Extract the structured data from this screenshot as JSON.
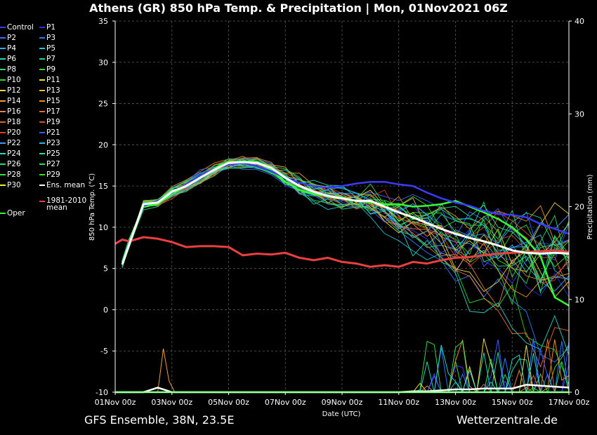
{
  "header": {
    "title": "Athens  (GR)  850 hPa Temp. & Precipitation | Mon, 01Nov2021 06Z"
  },
  "footer": {
    "left": "GFS Ensemble, 38N, 23.5E",
    "right": "Wetterzentrale.de"
  },
  "legend": {
    "members": [
      {
        "label": "Control",
        "color": "#3b3bff"
      },
      {
        "label": "P1",
        "color": "#2f2fe0"
      },
      {
        "label": "P2",
        "color": "#3a6cff"
      },
      {
        "label": "P3",
        "color": "#2a7bff"
      },
      {
        "label": "P4",
        "color": "#3aa6ff"
      },
      {
        "label": "P5",
        "color": "#27c6d8"
      },
      {
        "label": "P6",
        "color": "#22d8b0"
      },
      {
        "label": "P7",
        "color": "#22d890"
      },
      {
        "label": "P8",
        "color": "#2ad66e"
      },
      {
        "label": "P9",
        "color": "#33d84a"
      },
      {
        "label": "P10",
        "color": "#2ad82a"
      },
      {
        "label": "P11",
        "color": "#e6e62a"
      },
      {
        "label": "P12",
        "color": "#f0d84a"
      },
      {
        "label": "P13",
        "color": "#f0b840"
      },
      {
        "label": "P14",
        "color": "#f0a030"
      },
      {
        "label": "P15",
        "color": "#f09020"
      },
      {
        "label": "P16",
        "color": "#e88050"
      },
      {
        "label": "P17",
        "color": "#e86a3a"
      },
      {
        "label": "P18",
        "color": "#e0602a"
      },
      {
        "label": "P19",
        "color": "#e04a2a"
      },
      {
        "label": "P20",
        "color": "#e03a2a"
      },
      {
        "label": "P21",
        "color": "#3a5aff"
      },
      {
        "label": "P22",
        "color": "#3a9aff"
      },
      {
        "label": "P23",
        "color": "#2ab8f0"
      },
      {
        "label": "P24",
        "color": "#2ad8c8"
      },
      {
        "label": "P25",
        "color": "#2ae0a0"
      },
      {
        "label": "P26",
        "color": "#2ad880"
      },
      {
        "label": "P27",
        "color": "#2ae060"
      },
      {
        "label": "P28",
        "color": "#3ae03a"
      },
      {
        "label": "P29",
        "color": "#3ae02a"
      },
      {
        "label": "P30",
        "color": "#f0f02a"
      },
      {
        "label": "Ens. mean",
        "color": "#ffffff"
      }
    ],
    "oper": {
      "label": "Oper",
      "color": "#33ff33"
    },
    "clim": {
      "label_line1": "1981-2010",
      "label_line2": "mean",
      "color": "#e84040"
    }
  },
  "chart_data": {
    "type": "line",
    "title": "Athens  (GR)  850 hPa Temp. & Precipitation | Mon, 01Nov2021 06Z",
    "ylabel": "850 hPa Temp. (°C)",
    "ylabel_right": "Precipitation (mm)",
    "xlabel": "Date (UTC)",
    "xlim": [
      0,
      16
    ],
    "ylim": [
      -10,
      35
    ],
    "ylim_right": [
      0,
      40
    ],
    "x_ticks": [
      {
        "x": 0,
        "label": "01Nov 00z"
      },
      {
        "x": 2,
        "label": "03Nov 00z"
      },
      {
        "x": 4,
        "label": "05Nov 00z"
      },
      {
        "x": 6,
        "label": "07Nov 00z"
      },
      {
        "x": 8,
        "label": "09Nov 00z"
      },
      {
        "x": 10,
        "label": "11Nov 00z"
      },
      {
        "x": 12,
        "label": "13Nov 00z"
      },
      {
        "x": 14,
        "label": "15Nov 00z"
      },
      {
        "x": 16,
        "label": "17Nov 00z"
      }
    ],
    "y_ticks": [
      -10,
      -5,
      0,
      5,
      10,
      15,
      20,
      25,
      30,
      35
    ],
    "y_ticks_right": [
      0,
      10,
      20,
      30,
      40
    ],
    "grid": true,
    "series": [
      {
        "name": "Ens. mean",
        "color": "#ffffff",
        "width": 3,
        "x": [
          0.25,
          0.5,
          1,
          1.5,
          2,
          2.5,
          3,
          3.5,
          4,
          4.5,
          5,
          5.5,
          6,
          6.5,
          7,
          7.5,
          8,
          8.5,
          9,
          9.5,
          10,
          10.5,
          11,
          11.5,
          12,
          12.5,
          13,
          13.5,
          14,
          14.5,
          15,
          15.5,
          16
        ],
        "y": [
          5.5,
          8.0,
          12.8,
          13.0,
          14.3,
          15.0,
          16.0,
          17.0,
          17.8,
          17.9,
          17.8,
          17.2,
          16.0,
          15.0,
          14.3,
          13.8,
          13.5,
          13.2,
          13.2,
          12.5,
          11.8,
          11.2,
          10.5,
          9.8,
          9.2,
          8.7,
          8.3,
          7.8,
          7.2,
          6.9,
          6.8,
          6.9,
          6.8
        ]
      },
      {
        "name": "1981-2010 mean",
        "color": "#e84040",
        "width": 3,
        "x": [
          0,
          0.25,
          0.5,
          1,
          1.5,
          2,
          2.5,
          3,
          3.5,
          4,
          4.5,
          5,
          5.5,
          6,
          6.5,
          7,
          7.5,
          8,
          8.5,
          9,
          9.5,
          10,
          10.5,
          11,
          11.5,
          12,
          12.5,
          13,
          13.5,
          14,
          14.5,
          15,
          15.5,
          16
        ],
        "y": [
          8.0,
          8.5,
          8.3,
          8.8,
          8.6,
          8.2,
          7.6,
          7.7,
          7.7,
          7.6,
          6.6,
          6.8,
          6.7,
          6.9,
          6.3,
          6.0,
          6.3,
          5.8,
          5.6,
          5.2,
          5.4,
          5.2,
          5.8,
          5.6,
          6.0,
          6.3,
          6.4,
          6.6,
          6.8,
          6.9,
          7.0,
          7.1,
          7.2,
          7.0
        ]
      },
      {
        "name": "Oper",
        "color": "#33ff33",
        "width": 2.5,
        "x": [
          0.25,
          0.5,
          1,
          1.5,
          2,
          2.5,
          3,
          3.5,
          4,
          4.5,
          5,
          5.5,
          6,
          6.5,
          7,
          7.5,
          8,
          8.5,
          9,
          9.5,
          10,
          10.5,
          11,
          11.5,
          12,
          12.5,
          13,
          13.5,
          14,
          14.5,
          15,
          15.5,
          16
        ],
        "y": [
          5.8,
          8.5,
          12.5,
          12.8,
          14.0,
          15.0,
          16.2,
          17.2,
          17.9,
          18.0,
          17.9,
          17.0,
          15.5,
          14.5,
          14.0,
          13.8,
          13.6,
          13.2,
          13.0,
          12.8,
          12.8,
          12.5,
          12.6,
          12.8,
          13.2,
          12.5,
          11.8,
          11.0,
          10.0,
          8.5,
          6.5,
          1.5,
          0.5
        ]
      },
      {
        "name": "Control",
        "color": "#3b3bff",
        "width": 2.5,
        "x": [
          0.25,
          0.5,
          1,
          1.5,
          2,
          2.5,
          3,
          3.5,
          4,
          4.5,
          5,
          5.5,
          6,
          6.5,
          7,
          7.5,
          8,
          8.5,
          9,
          9.5,
          10,
          10.5,
          11,
          11.5,
          12,
          12.5,
          13,
          13.5,
          14,
          14.5,
          15,
          15.5,
          16
        ],
        "y": [
          5.6,
          8.2,
          12.6,
          13.2,
          14.2,
          15.2,
          16.3,
          17.1,
          17.6,
          17.8,
          17.4,
          16.8,
          16.0,
          15.4,
          15.0,
          14.8,
          15.0,
          15.3,
          15.5,
          15.5,
          15.2,
          15.0,
          14.2,
          13.5,
          13.0,
          12.6,
          12.0,
          11.6,
          11.5,
          11.2,
          10.4,
          9.8,
          9.2
        ]
      }
    ],
    "spread_members": 30,
    "precip_ensemble_mean": {
      "x": [
        0,
        1,
        1.5,
        2,
        3,
        4,
        5,
        6,
        7,
        8,
        9,
        10,
        10.5,
        11,
        11.5,
        12,
        12.5,
        13,
        13.5,
        14,
        14.5,
        15,
        15.5,
        16
      ],
      "y": [
        0,
        0,
        0.5,
        0,
        0,
        0,
        0,
        0,
        0,
        0,
        0,
        0,
        0.1,
        0.1,
        0.2,
        0.3,
        0.3,
        0.4,
        0.4,
        0.4,
        0.8,
        0.7,
        0.6,
        0.5
      ]
    },
    "precip_peak_member": {
      "x": [
        1.5,
        1.7,
        1.9,
        2.1
      ],
      "y": [
        0,
        4.7,
        1.2,
        0
      ]
    }
  }
}
